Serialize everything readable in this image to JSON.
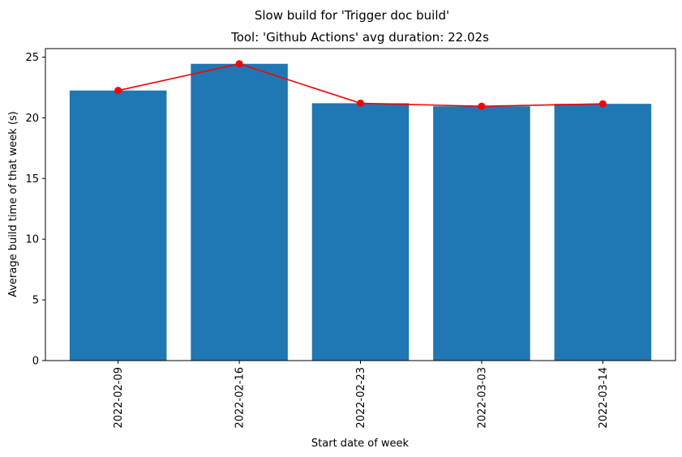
{
  "chart_data": {
    "type": "bar",
    "title": "Slow build for 'Trigger doc build'",
    "subtitle": "Tool: 'Github Actions' avg duration: 22.02s",
    "xlabel": "Start date of week",
    "ylabel": "Average build time of that week (s)",
    "categories": [
      "2022-02-09",
      "2022-02-16",
      "2022-02-23",
      "2022-03-03",
      "2022-03-14"
    ],
    "values": [
      22.25,
      24.45,
      21.2,
      20.95,
      21.15
    ],
    "line_values": [
      22.25,
      24.45,
      21.2,
      20.95,
      21.15
    ],
    "yticks": [
      0,
      5,
      10,
      15,
      20,
      25
    ],
    "ylim": [
      0,
      25.7
    ],
    "grid": false,
    "colors": {
      "bar": "#1f77b4",
      "line": "#ff0000",
      "marker": "#ff0000",
      "axis": "#000000"
    }
  }
}
